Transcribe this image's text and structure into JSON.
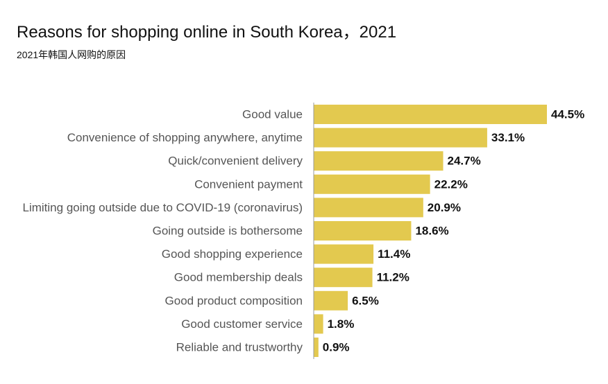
{
  "title": "Reasons for shopping online in South Korea，2021",
  "subtitle": "2021年韩国人网购的原因",
  "colors": {
    "bar": "#E3C94F",
    "axis": "#9a9a9a",
    "label": "#555555",
    "value": "#111111"
  },
  "chart_data": {
    "type": "bar",
    "orientation": "horizontal",
    "categories": [
      "Good value",
      "Convenience of shopping anywhere, anytime",
      "Quick/convenient delivery",
      "Convenient payment",
      "Limiting going outside due to COVID-19 (coronavirus)",
      "Going outside is bothersome",
      "Good shopping experience",
      "Good membership deals",
      "Good product composition",
      "Good customer service",
      "Reliable and trustworthy"
    ],
    "values": [
      44.5,
      33.1,
      24.7,
      22.2,
      20.9,
      18.6,
      11.4,
      11.2,
      6.5,
      1.8,
      0.9
    ],
    "value_labels": [
      "44.5%",
      "33.1%",
      "24.7%",
      "22.2%",
      "20.9%",
      "18.6%",
      "11.4%",
      "11.2%",
      "6.5%",
      "1.8%",
      "0.9%"
    ],
    "xlim": [
      0,
      44.5
    ],
    "grid": false,
    "legend": "none"
  }
}
